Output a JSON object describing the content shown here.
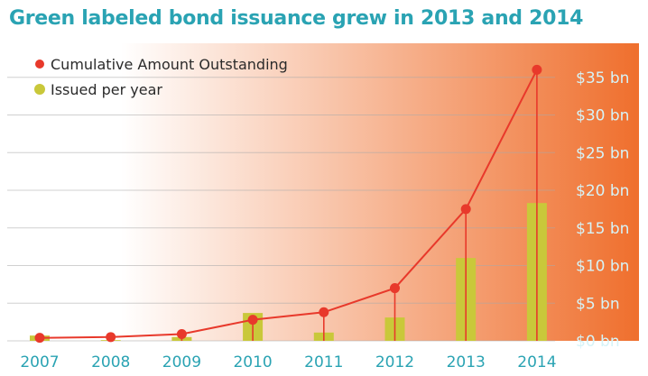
{
  "title": "Green labeled bond issuance grew in 2013 and 2014",
  "colors": {
    "title": "#2aa3b3",
    "line": "#e8392b",
    "bars": "#c9c83a",
    "gradient_start": "#ffffff",
    "gradient_end": "#ef6f2d",
    "ytick": "#d6f3f7",
    "xtick": "#2aa3b3"
  },
  "chart_data": {
    "type": "bar",
    "categories": [
      "2007",
      "2008",
      "2009",
      "2010",
      "2011",
      "2012",
      "2013",
      "2014"
    ],
    "series": [
      {
        "name": "Cumulative Amount Outstanding",
        "type": "line",
        "values": [
          0.4,
          0.5,
          0.9,
          2.8,
          3.8,
          7.0,
          17.5,
          36.0
        ]
      },
      {
        "name": "Issued per year",
        "type": "bar",
        "values": [
          0.7,
          0.1,
          0.5,
          3.7,
          1.1,
          3.1,
          11.0,
          18.3
        ]
      }
    ],
    "yticks": [
      "$0 bn",
      "$5 bn",
      "$10 bn",
      "$15 bn",
      "$20 bn",
      "$25 bn",
      "$30 bn",
      "$35 bn"
    ],
    "ylim": [
      0,
      37
    ],
    "xlabel": "",
    "ylabel": "",
    "grid": true,
    "legend": "top-left"
  }
}
